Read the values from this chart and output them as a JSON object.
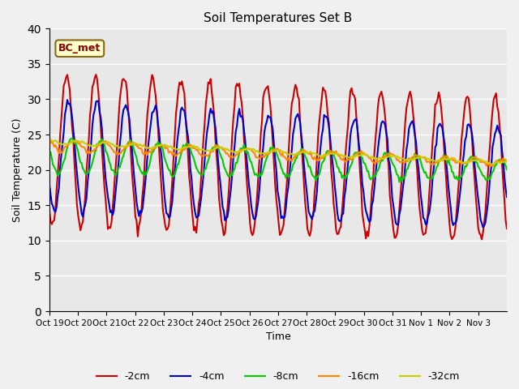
{
  "title": "Soil Temperatures Set B",
  "xlabel": "Time",
  "ylabel": "Soil Temperature (C)",
  "ylim": [
    0,
    40
  ],
  "yticks": [
    0,
    5,
    10,
    15,
    20,
    25,
    30,
    35,
    40
  ],
  "xtick_labels": [
    "Oct 19",
    "Oct 20",
    "Oct 21",
    "Oct 22",
    "Oct 23",
    "Oct 24",
    "Oct 25",
    "Oct 26",
    "Oct 27",
    "Oct 28",
    "Oct 29",
    "Oct 30",
    "Oct 31",
    "Nov 1",
    "Nov 2",
    "Nov 3"
  ],
  "annotation_text": "BC_met",
  "series_colors": [
    "#cc0000",
    "#0000cc",
    "#00cc00",
    "#ff8800",
    "#cccc00"
  ],
  "series_labels": [
    "-2cm",
    "-4cm",
    "-8cm",
    "-16cm",
    "-32cm"
  ],
  "line_width": 1.5,
  "bg_color": "#e8e8e8",
  "grid_color": "#ffffff",
  "n_days": 16,
  "pts_per_day": 24,
  "random_seed": 42
}
